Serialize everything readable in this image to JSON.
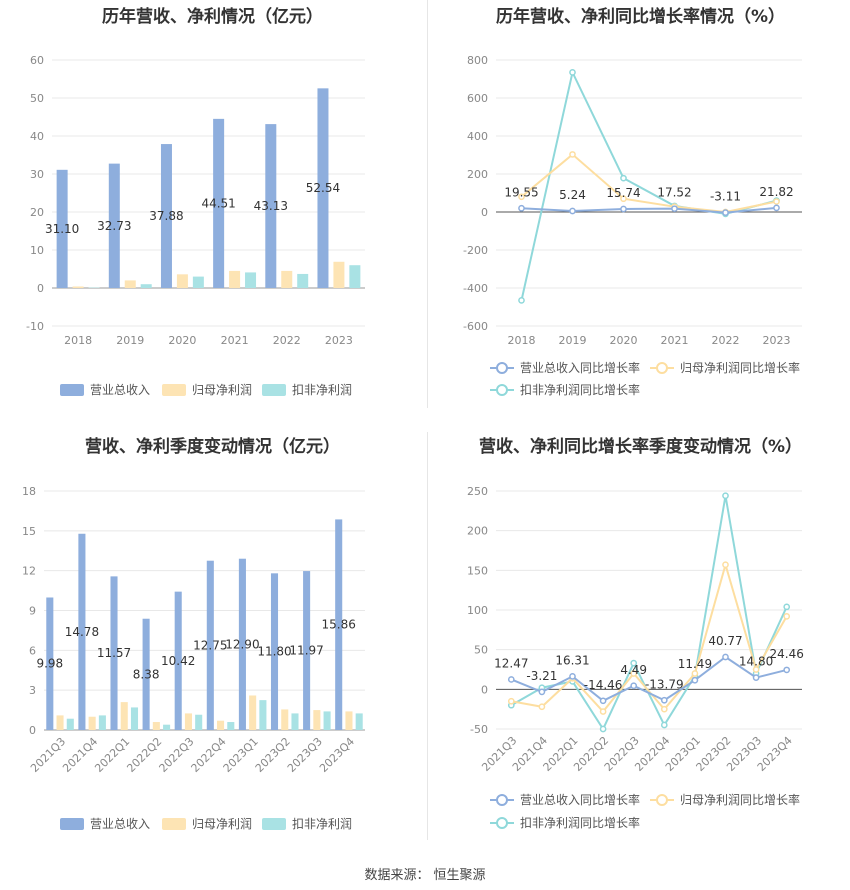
{
  "footer": {
    "label": "数据来源：",
    "source": "恒生聚源"
  },
  "colors": {
    "revenue": "#8eaedd",
    "net_profit": "#fde4b4",
    "deducted_profit": "#a9e2e4",
    "line_revenue": "#8eaedd",
    "line_net": "#fddea0",
    "line_deducted": "#8fd8da"
  },
  "chart_data": [
    {
      "id": "annual-bar",
      "type": "bar",
      "title": "历年营收、净利情况（亿元）",
      "categories": [
        "2018",
        "2019",
        "2020",
        "2021",
        "2022",
        "2023"
      ],
      "ylim": [
        -10,
        60
      ],
      "yticks": [
        -10,
        0,
        10,
        20,
        30,
        40,
        50,
        60
      ],
      "grid": true,
      "legend_position": "bottom",
      "series": [
        {
          "name": "营业总收入",
          "values": [
            31.1,
            32.73,
            37.88,
            44.51,
            43.13,
            52.54
          ],
          "labels": [
            "31.10",
            "32.73",
            "37.88",
            "44.51",
            "43.13",
            "52.54"
          ]
        },
        {
          "name": "归母净利润",
          "values": [
            0.4,
            2.0,
            3.6,
            4.5,
            4.5,
            6.9
          ]
        },
        {
          "name": "扣非净利润",
          "values": [
            0.1,
            1.0,
            3.0,
            4.1,
            3.7,
            6.0
          ]
        }
      ]
    },
    {
      "id": "annual-line",
      "type": "line",
      "title": "历年营收、净利同比增长率情况（%）",
      "categories": [
        "2018",
        "2019",
        "2020",
        "2021",
        "2022",
        "2023"
      ],
      "ylim": [
        -600,
        800
      ],
      "yticks": [
        -600,
        -400,
        -200,
        0,
        200,
        400,
        600,
        800
      ],
      "grid": true,
      "legend_position": "bottom",
      "series": [
        {
          "name": "营业总收入同比增长率",
          "values": [
            19.55,
            5.24,
            15.74,
            17.52,
            -3.11,
            21.82
          ],
          "labels": [
            "19.55",
            "5.24",
            "15.74",
            "17.52",
            "-3.11",
            "21.82"
          ]
        },
        {
          "name": "归母净利润同比增长率",
          "values": [
            80,
            303,
            70,
            28,
            0,
            55
          ]
        },
        {
          "name": "扣非净利润同比增长率",
          "values": [
            -465,
            735,
            178,
            32,
            -10,
            60
          ]
        }
      ]
    },
    {
      "id": "quarter-bar",
      "type": "bar",
      "title": "营收、净利季度变动情况（亿元）",
      "categories": [
        "2021Q3",
        "2021Q4",
        "2022Q1",
        "2022Q2",
        "2022Q3",
        "2022Q4",
        "2023Q1",
        "2023Q2",
        "2023Q3",
        "2023Q4"
      ],
      "ylim": [
        0,
        18
      ],
      "yticks": [
        0,
        3,
        6,
        9,
        12,
        15,
        18
      ],
      "grid": true,
      "legend_position": "bottom",
      "series": [
        {
          "name": "营业总收入",
          "values": [
            9.98,
            14.78,
            11.57,
            8.38,
            10.42,
            12.75,
            12.9,
            11.8,
            11.97,
            15.86
          ],
          "labels": [
            "9.98",
            "14.78",
            "11.57",
            "8.38",
            "10.42",
            "12.75",
            "12.90",
            "11.80",
            "11.97",
            "15.86"
          ]
        },
        {
          "name": "归母净利润",
          "values": [
            1.1,
            1.0,
            2.1,
            0.6,
            1.25,
            0.7,
            2.6,
            1.55,
            1.5,
            1.4
          ]
        },
        {
          "name": "扣非净利润",
          "values": [
            0.85,
            1.1,
            1.7,
            0.4,
            1.15,
            0.6,
            2.25,
            1.25,
            1.4,
            1.25
          ]
        }
      ]
    },
    {
      "id": "quarter-line",
      "type": "line",
      "title": "营收、净利同比增长率季度变动情况（%）",
      "categories": [
        "2021Q3",
        "2021Q4",
        "2022Q1",
        "2022Q2",
        "2022Q3",
        "2022Q4",
        "2023Q1",
        "2023Q2",
        "2023Q3",
        "2023Q4"
      ],
      "ylim": [
        -50,
        250
      ],
      "yticks": [
        -50,
        0,
        50,
        100,
        150,
        200,
        250
      ],
      "grid": true,
      "legend_position": "bottom",
      "series": [
        {
          "name": "营业总收入同比增长率",
          "values": [
            12.47,
            -3.21,
            16.31,
            -14.46,
            4.49,
            -13.79,
            11.49,
            40.77,
            14.8,
            24.46
          ],
          "labels": [
            "12.47",
            "-3.21",
            "16.31",
            "-14.46",
            "4.49",
            "-13.79",
            "11.49",
            "40.77",
            "14.80",
            "24.46"
          ]
        },
        {
          "name": "归母净利润同比增长率",
          "values": [
            -15,
            -22,
            14,
            -28,
            20,
            -25,
            20,
            157,
            25,
            92
          ]
        },
        {
          "name": "扣非净利润同比增长率",
          "values": [
            -20,
            2,
            10,
            -50,
            33,
            -45,
            17,
            244,
            20,
            104
          ]
        }
      ]
    }
  ]
}
